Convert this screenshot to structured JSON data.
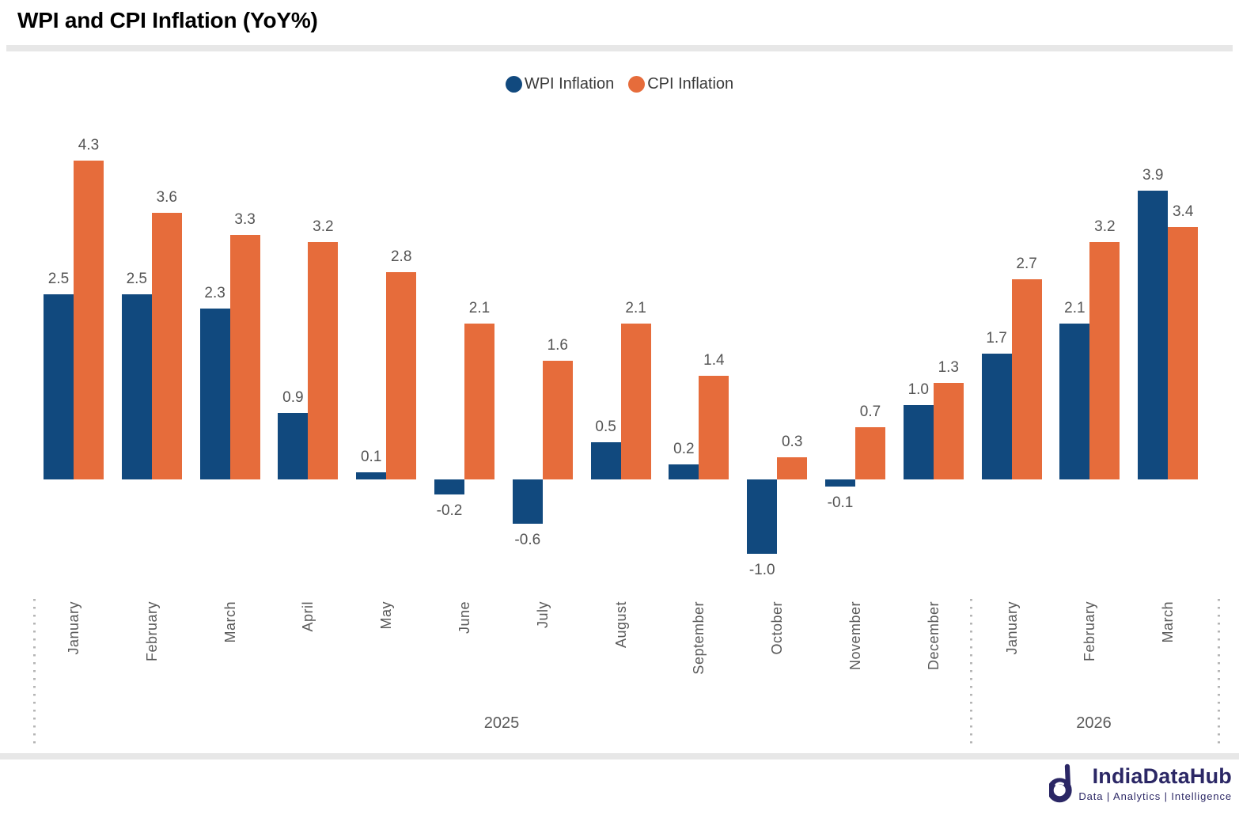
{
  "title": "WPI and CPI Inflation (YoY%)",
  "legend": [
    {
      "label": "WPI Inflation",
      "color": "#11497E"
    },
    {
      "label": "CPI Inflation",
      "color": "#E66C3B"
    }
  ],
  "chart_data": {
    "type": "bar",
    "title": "WPI and CPI Inflation (YoY%)",
    "categories": [
      "January",
      "February",
      "March",
      "April",
      "May",
      "June",
      "July",
      "August",
      "September",
      "October",
      "November",
      "December",
      "January",
      "February",
      "March"
    ],
    "year_groups": [
      {
        "label": "2025",
        "first_index": 0,
        "last_index": 11
      },
      {
        "label": "2026",
        "first_index": 12,
        "last_index": 14
      }
    ],
    "series": [
      {
        "name": "WPI Inflation",
        "color": "#11497E",
        "values": [
          2.5,
          2.5,
          2.3,
          0.9,
          0.1,
          -0.2,
          -0.6,
          0.5,
          0.2,
          -1.0,
          -0.1,
          1.0,
          1.7,
          2.1,
          3.9
        ]
      },
      {
        "name": "CPI Inflation",
        "color": "#E66C3B",
        "values": [
          4.3,
          3.6,
          3.3,
          3.2,
          2.8,
          2.1,
          1.6,
          2.1,
          1.4,
          0.3,
          0.7,
          1.3,
          2.7,
          3.2,
          3.4
        ]
      }
    ],
    "xlabel": "",
    "ylabel": "",
    "ylim": [
      -1.0,
      4.3
    ],
    "grid": false,
    "axis_lines": false,
    "value_labels": true,
    "legend_position": "top-center"
  },
  "footer": {
    "brand": "IndiaDataHub",
    "tagline": "Data | Analytics | Intelligence"
  }
}
